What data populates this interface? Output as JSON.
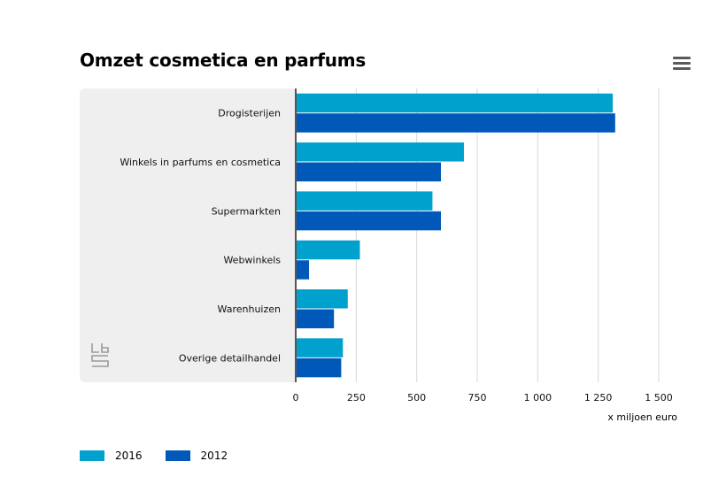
{
  "chart_data": {
    "type": "bar",
    "orientation": "horizontal",
    "title": "Omzet cosmetica en parfums",
    "categories": [
      "Drogisterijen",
      "Winkels in parfums en cosmetica",
      "Supermarkten",
      "Webwinkels",
      "Warenhuizen",
      "Overige detailhandel"
    ],
    "series": [
      {
        "name": "2016",
        "color": "#00a1cd",
        "values": [
          1310,
          695,
          565,
          265,
          215,
          195
        ]
      },
      {
        "name": "2012",
        "color": "#0058b8",
        "values": [
          1320,
          600,
          600,
          55,
          158,
          188
        ]
      }
    ],
    "xlabel": "x miljoen euro",
    "xlim": [
      0,
      1500
    ],
    "xticks": [
      0,
      250,
      500,
      750,
      1000,
      1250,
      1500
    ],
    "xtick_labels": [
      "0",
      "250",
      "500",
      "750",
      "1 000",
      "1 250",
      "1 500"
    ],
    "grid": true,
    "legend_position": "bottom-left"
  }
}
